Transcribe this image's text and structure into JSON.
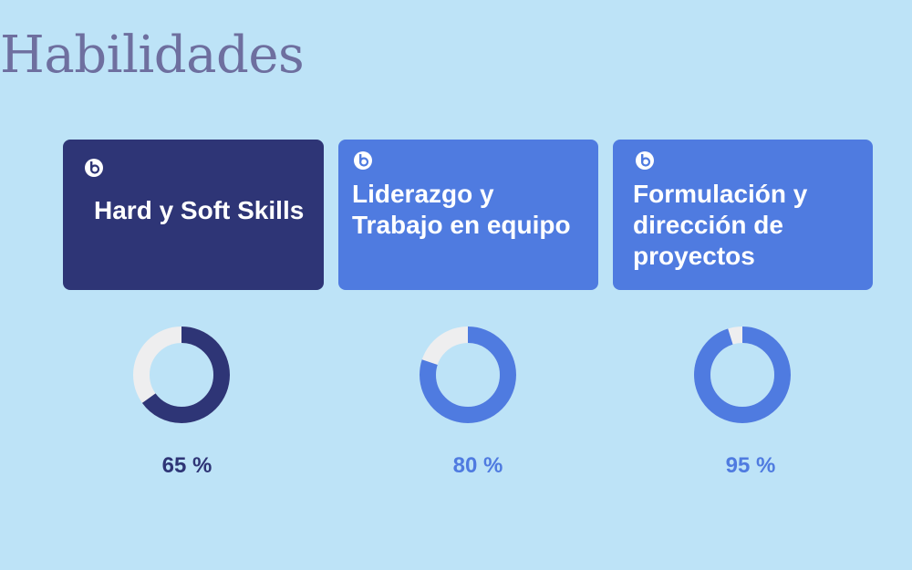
{
  "page": {
    "title": "Habilidades"
  },
  "colors": {
    "background": "#bde3f7",
    "title": "#6e6f9f",
    "dark_navy": "#2e3576",
    "blue": "#4f7be0",
    "track": "#eeeeef",
    "white": "#ffffff"
  },
  "skills": [
    {
      "label": "Hard y Soft Skills",
      "percent": 65,
      "percent_label": "65 %",
      "icon": "circle-logo-icon",
      "color": "#2e3576"
    },
    {
      "label": "Liderazgo y Trabajo en equipo",
      "percent": 80,
      "percent_label": "80 %",
      "icon": "circle-logo-icon",
      "color": "#4f7be0"
    },
    {
      "label": "Formulación y dirección de proyectos",
      "percent": 95,
      "percent_label": "95 %",
      "icon": "circle-logo-icon",
      "color": "#4f7be0"
    }
  ]
}
